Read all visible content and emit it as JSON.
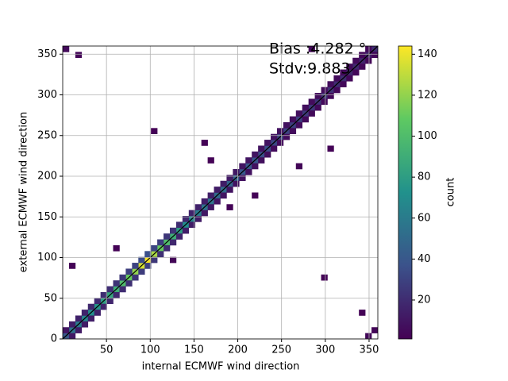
{
  "chart_data": {
    "type": "hist2d",
    "xlabel": "internal ECMWF wind direction",
    "ylabel": "external ECMWF wind direction",
    "colorbar_label": "count",
    "annotations": [
      "Bias :4.282 °",
      "Stdv:9.883"
    ],
    "xlim": [
      0,
      360
    ],
    "ylim": [
      0,
      360
    ],
    "xticks": [
      50,
      100,
      150,
      200,
      250,
      300,
      350
    ],
    "yticks": [
      0,
      50,
      100,
      150,
      200,
      250,
      300,
      350
    ],
    "clim": [
      1,
      144
    ],
    "cticks": [
      20,
      40,
      60,
      80,
      100,
      120,
      140
    ],
    "cmap": "viridis",
    "grid": true,
    "identity_line": true,
    "bin_width": 7.2,
    "cells": [
      [
        0,
        0,
        40
      ],
      [
        7.2,
        7.2,
        55
      ],
      [
        14.4,
        14.4,
        60
      ],
      [
        21.6,
        21.6,
        65
      ],
      [
        28.8,
        28.8,
        70
      ],
      [
        36,
        36,
        75
      ],
      [
        43.2,
        43.2,
        80
      ],
      [
        50.4,
        50.4,
        85
      ],
      [
        57.6,
        57.6,
        90
      ],
      [
        64.8,
        64.8,
        100
      ],
      [
        72,
        72,
        110
      ],
      [
        79.2,
        79.2,
        120
      ],
      [
        86.4,
        86.4,
        135
      ],
      [
        93.6,
        93.6,
        144
      ],
      [
        100.8,
        100.8,
        125
      ],
      [
        108,
        108,
        110
      ],
      [
        115.2,
        115.2,
        100
      ],
      [
        122.4,
        122.4,
        90
      ],
      [
        129.6,
        129.6,
        80
      ],
      [
        136.8,
        136.8,
        70
      ],
      [
        144,
        144,
        65
      ],
      [
        151.2,
        151.2,
        60
      ],
      [
        158.4,
        158.4,
        55
      ],
      [
        165.6,
        165.6,
        55
      ],
      [
        172.8,
        172.8,
        50
      ],
      [
        180,
        180,
        50
      ],
      [
        187.2,
        187.2,
        45
      ],
      [
        194.4,
        194.4,
        45
      ],
      [
        201.6,
        201.6,
        40
      ],
      [
        208.8,
        208.8,
        40
      ],
      [
        216,
        216,
        38
      ],
      [
        223.2,
        223.2,
        35
      ],
      [
        230.4,
        230.4,
        35
      ],
      [
        237.6,
        237.6,
        32
      ],
      [
        244.8,
        244.8,
        30
      ],
      [
        252,
        252,
        30
      ],
      [
        259.2,
        259.2,
        28
      ],
      [
        266.4,
        266.4,
        28
      ],
      [
        273.6,
        273.6,
        26
      ],
      [
        280.8,
        280.8,
        25
      ],
      [
        288,
        288,
        24
      ],
      [
        295.2,
        295.2,
        22
      ],
      [
        302.4,
        302.4,
        22
      ],
      [
        309.6,
        309.6,
        20
      ],
      [
        316.8,
        316.8,
        20
      ],
      [
        324,
        324,
        18
      ],
      [
        331.2,
        331.2,
        18
      ],
      [
        338.4,
        338.4,
        16
      ],
      [
        345.6,
        345.6,
        15
      ],
      [
        352.8,
        352.8,
        20
      ],
      [
        0,
        7.2,
        10
      ],
      [
        7.2,
        14.4,
        14
      ],
      [
        14.4,
        21.6,
        15
      ],
      [
        21.6,
        28.8,
        16
      ],
      [
        28.8,
        36,
        18
      ],
      [
        36,
        43.2,
        19
      ],
      [
        43.2,
        50.4,
        20
      ],
      [
        50.4,
        57.6,
        21
      ],
      [
        57.6,
        64.8,
        23
      ],
      [
        64.8,
        72,
        25
      ],
      [
        72,
        79.2,
        28
      ],
      [
        79.2,
        86.4,
        30
      ],
      [
        86.4,
        93.6,
        34
      ],
      [
        93.6,
        100.8,
        36
      ],
      [
        100.8,
        108,
        31
      ],
      [
        108,
        115.2,
        28
      ],
      [
        115.2,
        122.4,
        25
      ],
      [
        122.4,
        129.6,
        23
      ],
      [
        129.6,
        136.8,
        20
      ],
      [
        136.8,
        144,
        18
      ],
      [
        144,
        151.2,
        16
      ],
      [
        151.2,
        158.4,
        15
      ],
      [
        158.4,
        165.6,
        14
      ],
      [
        165.6,
        172.8,
        14
      ],
      [
        172.8,
        180,
        13
      ],
      [
        180,
        187.2,
        13
      ],
      [
        187.2,
        194.4,
        11
      ],
      [
        194.4,
        201.6,
        11
      ],
      [
        201.6,
        208.8,
        10
      ],
      [
        208.8,
        216,
        10
      ],
      [
        216,
        223.2,
        10
      ],
      [
        223.2,
        230.4,
        9
      ],
      [
        230.4,
        237.6,
        9
      ],
      [
        237.6,
        244.8,
        8
      ],
      [
        244.8,
        252,
        8
      ],
      [
        252,
        259.2,
        8
      ],
      [
        259.2,
        266.4,
        7
      ],
      [
        266.4,
        273.6,
        7
      ],
      [
        273.6,
        280.8,
        7
      ],
      [
        280.8,
        288,
        6
      ],
      [
        288,
        295.2,
        6
      ],
      [
        295.2,
        302.4,
        6
      ],
      [
        302.4,
        309.6,
        6
      ],
      [
        309.6,
        316.8,
        5
      ],
      [
        316.8,
        324,
        5
      ],
      [
        324,
        331.2,
        5
      ],
      [
        331.2,
        338.4,
        5
      ],
      [
        338.4,
        345.6,
        4
      ],
      [
        345.6,
        352.8,
        4
      ],
      [
        7.2,
        0,
        11
      ],
      [
        14.4,
        7.2,
        12
      ],
      [
        21.6,
        14.4,
        13
      ],
      [
        28.8,
        21.6,
        14
      ],
      [
        36,
        28.8,
        15
      ],
      [
        43.2,
        36,
        16
      ],
      [
        50.4,
        43.2,
        17
      ],
      [
        57.6,
        50.4,
        18
      ],
      [
        64.8,
        57.6,
        20
      ],
      [
        72,
        64.8,
        22
      ],
      [
        79.2,
        72,
        24
      ],
      [
        86.4,
        79.2,
        27
      ],
      [
        93.6,
        86.4,
        29
      ],
      [
        100.8,
        93.6,
        25
      ],
      [
        108,
        100.8,
        22
      ],
      [
        115.2,
        108,
        20
      ],
      [
        122.4,
        115.2,
        18
      ],
      [
        129.6,
        122.4,
        16
      ],
      [
        136.8,
        129.6,
        14
      ],
      [
        144,
        136.8,
        13
      ],
      [
        151.2,
        144,
        12
      ],
      [
        158.4,
        151.2,
        11
      ],
      [
        165.6,
        158.4,
        11
      ],
      [
        172.8,
        165.6,
        10
      ],
      [
        180,
        172.8,
        10
      ],
      [
        187.2,
        180,
        9
      ],
      [
        194.4,
        187.2,
        9
      ],
      [
        201.6,
        194.4,
        8
      ],
      [
        208.8,
        201.6,
        8
      ],
      [
        216,
        208.8,
        8
      ],
      [
        223.2,
        216,
        7
      ],
      [
        230.4,
        223.2,
        7
      ],
      [
        237.6,
        230.4,
        6
      ],
      [
        244.8,
        237.6,
        6
      ],
      [
        252,
        244.8,
        6
      ],
      [
        259.2,
        252,
        6
      ],
      [
        266.4,
        259.2,
        6
      ],
      [
        273.6,
        266.4,
        5
      ],
      [
        280.8,
        273.6,
        5
      ],
      [
        288,
        280.8,
        5
      ],
      [
        295.2,
        288,
        4
      ],
      [
        302.4,
        295.2,
        4
      ],
      [
        309.6,
        302.4,
        4
      ],
      [
        316.8,
        309.6,
        4
      ],
      [
        324,
        316.8,
        4
      ],
      [
        331.2,
        324,
        4
      ],
      [
        338.4,
        331.2,
        3
      ],
      [
        345.6,
        338.4,
        3
      ],
      [
        352.8,
        345.6,
        4
      ],
      [
        0,
        352.8,
        5
      ],
      [
        14.4,
        345.6,
        3
      ],
      [
        345.6,
        0,
        4
      ],
      [
        352.8,
        7.2,
        3
      ],
      [
        100.8,
        252,
        2
      ],
      [
        187.2,
        158.4,
        2
      ],
      [
        295.2,
        72,
        2
      ],
      [
        57.6,
        108,
        2
      ],
      [
        216,
        172.8,
        2
      ],
      [
        266.4,
        208.8,
        3
      ],
      [
        302.4,
        230.4,
        2
      ],
      [
        165.6,
        216,
        2
      ],
      [
        122.4,
        93.6,
        3
      ],
      [
        158.4,
        237.6,
        2
      ],
      [
        280.8,
        352.8,
        4
      ],
      [
        338.4,
        28.8,
        2
      ],
      [
        7.2,
        86.4,
        2
      ]
    ]
  }
}
